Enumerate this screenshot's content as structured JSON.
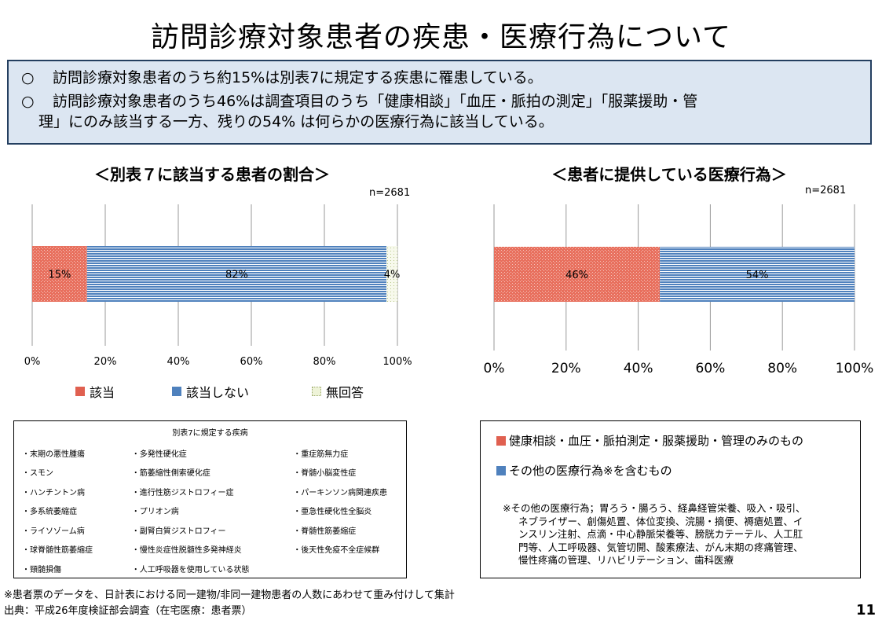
{
  "title": "訪問診療対象患者の疾患・医療行為について",
  "summary": {
    "marker": "○",
    "line1": "訪問診療対象患者のうち約15%は別表7に規定する疾患に罹患している。",
    "line2a": "訪問診療対象患者のうち46%は調査項目のうち「健康相談」「血圧・脈拍の測定」「服薬援助・管",
    "line2b": "理」にのみ該当する一方、残りの54% は何らかの医療行為に該当している。"
  },
  "chart_data": [
    {
      "type": "bar",
      "orientation": "horizontal-stacked-100",
      "title": "＜別表７に該当する患者の割合＞",
      "n_label": "n=2681",
      "xlim": [
        0,
        100
      ],
      "x_ticks": [
        "0%",
        "20%",
        "40%",
        "60%",
        "80%",
        "100%"
      ],
      "grid": true,
      "legend_position": "bottom",
      "series": [
        {
          "name": "該当",
          "value": 15,
          "label": "15%",
          "color": "#e06050"
        },
        {
          "name": "該当しない",
          "value": 82,
          "label": "82%",
          "color": "#4f81bd"
        },
        {
          "name": "無回答",
          "value": 4,
          "label": "4%",
          "color": "#eef3d8"
        }
      ]
    },
    {
      "type": "bar",
      "orientation": "horizontal-stacked-100",
      "title": "＜患者に提供している医療行為＞",
      "n_label": "n=2681",
      "xlim": [
        0,
        100
      ],
      "x_ticks": [
        "0%",
        "20%",
        "40%",
        "60%",
        "80%",
        "100%"
      ],
      "grid": true,
      "legend_position": "bottom-box",
      "series": [
        {
          "name": "健康相談・血圧・脈拍測定・服薬援助・管理のみのもの",
          "value": 46,
          "label": "46%",
          "color": "#e06050"
        },
        {
          "name": "その他の医療行為※を含むもの",
          "value": 54,
          "label": "54%",
          "color": "#4f81bd"
        }
      ]
    }
  ],
  "disease_table": {
    "heading": "別表7に規定する疾病",
    "rows": [
      [
        "・末期の悪性腫瘍",
        "・多発性硬化症",
        "・重症筋無力症"
      ],
      [
        "・スモン",
        "・筋萎縮性側索硬化症",
        "・脊髄小脳変性症"
      ],
      [
        "・ハンチントン病",
        "・進行性筋ジストロフィー症",
        "・パーキンソン病関連疾患"
      ],
      [
        "・多系統萎縮症",
        "・プリオン病",
        "・亜急性硬化性全脳炎"
      ],
      [
        "・ライソゾーム病",
        "・副腎白質ジストロフィー",
        "・脊髄性筋萎縮症"
      ],
      [
        "・球脊髄性筋萎縮症",
        "・慢性炎症性脱髄性多発神経炎",
        "・後天性免疫不全症候群"
      ],
      [
        "・頸髄損傷",
        "・人工呼吸器を使用している状態",
        ""
      ]
    ]
  },
  "med_note": {
    "line1": "※その他の医療行為；胃ろう・腸ろう、経鼻経管栄養、吸入・吸引、",
    "line2": "ネブライザー、創傷処置、体位変換、浣腸・摘便、褥瘡処置、イ",
    "line3": "ンスリン注射、点滴・中心静脈栄養等、膀胱カテーテル、人工肛",
    "line4": "門等、人工呼吸器、気管切開、酸素療法、がん末期の疼痛管理、",
    "line5": "慢性疼痛の管理、リハビリテーション、歯科医療"
  },
  "footer": {
    "note": "※患者票のデータを、日計表における同一建物/非同一建物患者の人数にあわせて重み付けして集計",
    "source": "出典：平成26年度検証部会調査（在宅医療：患者票）"
  },
  "page_number": "11"
}
